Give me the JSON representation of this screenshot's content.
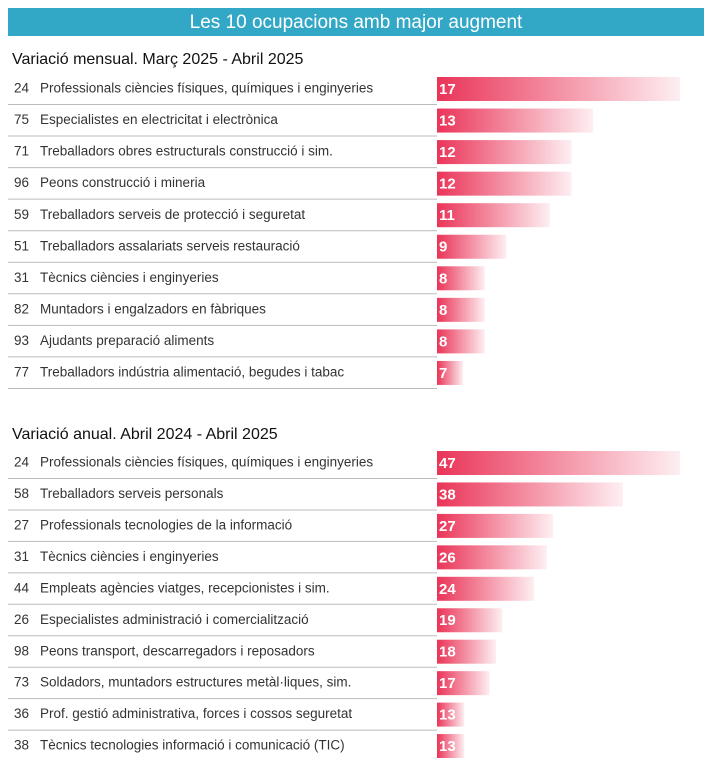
{
  "title": "Les 10 ocupacions amb major augment",
  "chart_data": [
    {
      "type": "bar",
      "title": "Variació mensual. Març 2025 - Abril 2025",
      "codes": [
        "24",
        "75",
        "71",
        "96",
        "59",
        "51",
        "31",
        "82",
        "93",
        "77"
      ],
      "categories": [
        "Professionals ciències físiques, químiques i enginyeries",
        "Especialistes en electricitat i electrònica",
        "Treballadors obres estructurals construcció i sim.",
        "Peons construcció i mineria",
        "Treballadors serveis de protecció i seguretat",
        "Treballadors assalariats serveis restauració",
        "Tècnics ciències i enginyeries",
        "Muntadors i engalzadors en fàbriques",
        "Ajudants preparació aliments",
        "Treballadors indústria alimentació, begudes i tabac"
      ],
      "values": [
        17,
        13,
        12,
        12,
        11,
        9,
        8,
        8,
        8,
        7
      ],
      "color": "#ea3458",
      "xlim": [
        5.8,
        17
      ]
    },
    {
      "type": "bar",
      "title": "Variació anual.  Abril 2024 - Abril 2025",
      "codes": [
        "24",
        "58",
        "27",
        "31",
        "44",
        "26",
        "98",
        "73",
        "36",
        "38"
      ],
      "categories": [
        "Professionals ciències físiques, químiques i enginyeries",
        "Treballadors serveis personals",
        "Professionals tecnologies de la informació",
        "Tècnics ciències i enginyeries",
        "Empleats agències viatges, recepcionistes i sim.",
        "Especialistes administració i comercialització",
        "Peons transport, descarregadors i reposadors",
        "Soldadors, muntadors estructures metàl·liques, sim.",
        "Prof. gestió administrativa, forces i cossos seguretat",
        "Tècnics tecnologies informació i comunicació (TIC)"
      ],
      "values": [
        47,
        38,
        27,
        26,
        24,
        19,
        18,
        17,
        13,
        13
      ],
      "color": "#ea3458",
      "xlim": [
        8.7,
        47
      ]
    }
  ]
}
